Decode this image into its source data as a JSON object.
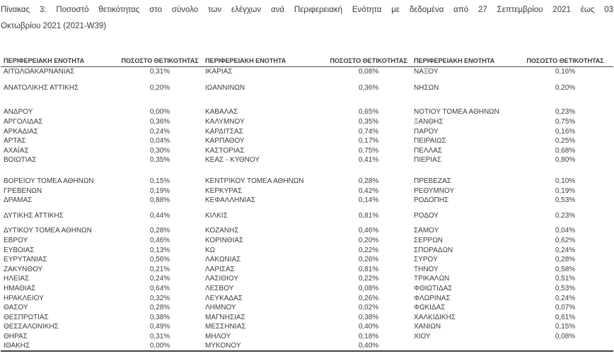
{
  "title": {
    "line1": "Πίνακας 3: Ποσοστό θετικότητας στο σύνολο των ελέγχων ανά Περιφερειακή Ενότητα με δεδομένα από 27 Σεπτεμβρίου 2021 έως 03",
    "line2": "Οκτωβρίου 2021 (2021-W39)"
  },
  "colors": {
    "text": "#3d3d3d",
    "header_rule": "#4a4a4a",
    "bottom_rule": "#40404c"
  },
  "table": {
    "headers": [
      "ΠΕΡΙΦΕΡΕΙΑΚΗ ΕΝΟΤΗΤΑ",
      "ΠΟΣΟΣΤΟ ΘΕΤΙΚΟΤΗΤΑΣ",
      "ΠΕΡΙΦΕΡΕΙΑΚΗ ΕΝΟΤΗΤΑ",
      "ΠΟΣΟΣΤΟ ΘΕΤΙΚΟΤΗΤΑΣ",
      "ΠΕΡΙΦΕΡΕΙΑΚΗ ΕΝΟΤΗΤΑ",
      "ΠΟΣΟΣΤΟ ΘΕΤΙΚΟΤΗΤΑΣ"
    ],
    "rows": [
      {
        "cells": [
          "ΑΙΤΩΛΟΑΚΑΡΝΑΝΙΑΣ",
          "0,31%",
          "ΙΚΑΡΙΑΣ",
          "0,08%",
          "ΝΑΞΟΥ",
          "0,16%"
        ]
      },
      {
        "spacer": 10
      },
      {
        "cells": [
          "ΑΝΑΤΟΛΙΚΗΣ ΑΤΤΙΚΗΣ",
          "0,20%",
          "ΙΩΑΝΝΙΝΩΝ",
          "0,36%",
          "ΝΗΣΩΝ",
          "0,20%"
        ]
      },
      {
        "spacer": 21
      },
      {
        "cells": [
          "ΑΝΔΡΟΥ",
          "0,00%",
          "ΚΑΒΑΛΑΣ",
          "0,65%",
          "ΝΟΤΙΟΥ ΤΟΜΕΑ ΑΘΗΝΩΝ",
          "0,23%"
        ]
      },
      {
        "cells": [
          "ΑΡΓΟΛΙΔΑΣ",
          "0,36%",
          "ΚΑΛΥΜΝΟΥ",
          "0,35%",
          "ΞΑΝΘΗΣ",
          "0,75%"
        ]
      },
      {
        "cells": [
          "ΑΡΚΑΔΙΑΣ",
          "0,24%",
          "ΚΑΡΔΙΤΣΑΣ",
          "0,74%",
          "ΠΑΡΟΥ",
          "0,16%"
        ]
      },
      {
        "cells": [
          "ΑΡΤΑΣ",
          "0,04%",
          "ΚΑΡΠΑΘΟΥ",
          "0,17%",
          "ΠΕΙΡΑΙΩΣ",
          "0,25%"
        ]
      },
      {
        "cells": [
          "ΑΧΑΪΑΣ",
          "0,30%",
          "ΚΑΣΤΟΡΙΑΣ",
          "0,75%",
          "ΠΕΛΛΑΣ",
          "0,68%"
        ]
      },
      {
        "cells": [
          "ΒΟΙΩΤΙΑΣ",
          "0,35%",
          "ΚΕΑΣ - ΚΥΘΝΟΥ",
          "0,41%",
          "ΠΙΕΡΙΑΣ",
          "0,80%"
        ]
      },
      {
        "spacer": 16
      },
      {
        "cells": [
          "ΒΟΡΕΙΟΥ ΤΟΜΕΑ ΑΘΗΝΩΝ",
          "0,15%",
          "ΚΕΝΤΡΙΚΟΥ ΤΟΜΕΑ ΑΘΗΝΩΝ",
          "0,28%",
          "ΠΡΕΒΕΖΑΣ",
          "0,10%"
        ]
      },
      {
        "cells": [
          "ΓΡΕΒΕΝΩΝ",
          "0,19%",
          "ΚΕΡΚΥΡΑΣ",
          "0,42%",
          "ΡΕΘΥΜΝΟΥ",
          "0,19%"
        ]
      },
      {
        "cells": [
          "ΔΡΑΜΑΣ",
          "0,88%",
          "ΚΕΦΑΛΛΗΝΙΑΣ",
          "0,14%",
          "ΡΟΔΟΠΗΣ",
          "0,53%"
        ]
      },
      {
        "spacer": 8
      },
      {
        "cells": [
          "ΔΥΤΙΚΗΣ ΑΤΤΙΚΗΣ",
          "0,44%",
          "ΚΙΛΚΙΣ",
          "0,81%",
          "ΡΟΔΟΥ",
          "0,23%"
        ]
      },
      {
        "spacer": 8
      },
      {
        "cells": [
          "ΔΥΤΙΚΟΥ ΤΟΜΕΑ ΑΘΗΝΩΝ",
          "0,28%",
          "ΚΟΖΑΝΗΣ",
          "0,46%",
          "ΣΑΜΟΥ",
          "0,04%"
        ]
      },
      {
        "cells": [
          "ΕΒΡΟΥ",
          "0,46%",
          "ΚΟΡΙΝΘΙΑΣ",
          "0,20%",
          "ΣΕΡΡΩΝ",
          "0,62%"
        ]
      },
      {
        "cells": [
          "ΕΥΒΟΙΑΣ",
          "0,13%",
          "ΚΩ",
          "0,22%",
          "ΣΠΟΡΑΔΩΝ",
          "0,24%"
        ]
      },
      {
        "cells": [
          "ΕΥΡΥΤΑΝΙΑΣ",
          "0,56%",
          "ΛΑΚΩΝΙΑΣ",
          "0,26%",
          "ΣΥΡΟΥ",
          "0,28%"
        ]
      },
      {
        "cells": [
          "ΖΑΚΥΝΘΟΥ",
          "0,21%",
          "ΛΑΡΙΣΑΣ",
          "0,81%",
          "ΤΗΝΟΥ",
          "0,58%"
        ]
      },
      {
        "cells": [
          "ΗΛΕΙΑΣ",
          "0,24%",
          "ΛΑΣΙΘΙΟΥ",
          "0,22%",
          "ΤΡΙΚΑΛΩΝ",
          "0,51%"
        ]
      },
      {
        "cells": [
          "ΗΜΑΘΙΑΣ",
          "0,64%",
          "ΛΕΣΒΟΥ",
          "0,08%",
          "ΦΘΙΩΤΙΔΑΣ",
          "0,53%"
        ]
      },
      {
        "cells": [
          "ΗΡΑΚΛΕΙΟΥ",
          "0,32%",
          "ΛΕΥΚΑΔΑΣ",
          "0,26%",
          "ΦΛΩΡΙΝΑΣ",
          "0,24%"
        ]
      },
      {
        "cells": [
          "ΘΑΣΟΥ",
          "0,28%",
          "ΛΗΜΝΟΥ",
          "0,02%",
          "ΦΩΚΙΔΑΣ",
          "0,07%"
        ]
      },
      {
        "cells": [
          "ΘΕΣΠΡΩΤΙΑΣ",
          "0,38%",
          "ΜΑΓΝΗΣΙΑΣ",
          "0,38%",
          "ΧΑΛΚΙΔΙΚΗΣ",
          "0,61%"
        ]
      },
      {
        "cells": [
          "ΘΕΣΣΑΛΟΝΙΚΗΣ",
          "0,49%",
          "ΜΕΣΣΗΝΙΑΣ",
          "0,40%",
          "ΧΑΝΙΩΝ",
          "0,15%"
        ]
      },
      {
        "cells": [
          "ΘΗΡΑΣ",
          "0,31%",
          "ΜΗΛΟΥ",
          "0,18%",
          "ΧΙΟΥ",
          "0,08%"
        ]
      },
      {
        "cells": [
          "ΙΘΑΚΗΣ",
          "0,00%",
          "ΜΥΚΟΝΟΥ",
          "0,40%",
          "",
          ""
        ]
      }
    ]
  }
}
